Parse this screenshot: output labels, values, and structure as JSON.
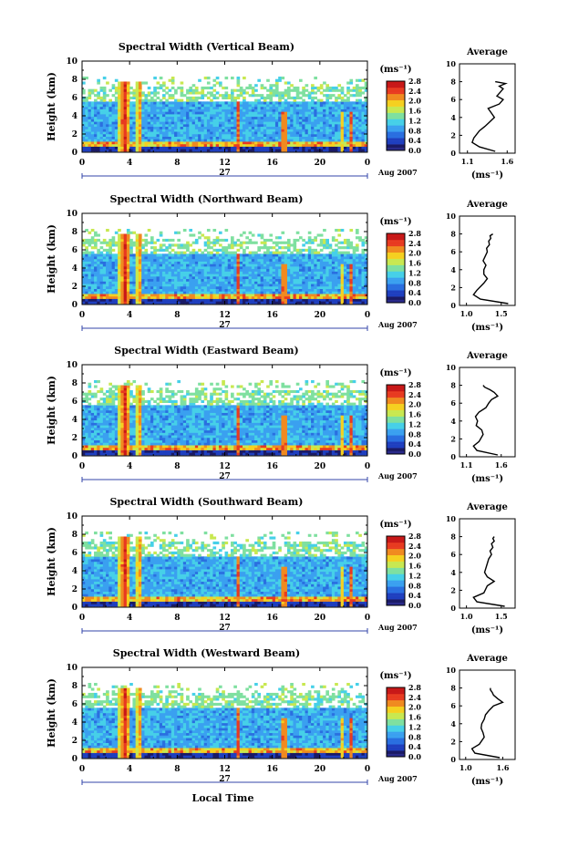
{
  "figure": {
    "xlabel": "Local Time",
    "date_label": "27",
    "month_label": "Aug 2007",
    "colorbar_unit": "(ms⁻¹)",
    "avg_title": "Average",
    "avg_xlabel": "(ms⁻¹)"
  },
  "colors": {
    "colormap": [
      "#1a1a66",
      "#1f3fbf",
      "#2a6fe0",
      "#3aa0f0",
      "#46d0e8",
      "#7fe0a0",
      "#c8e850",
      "#f5d020",
      "#f08a20",
      "#e83a20",
      "#c81818"
    ],
    "low_band": "#2a2a8a",
    "avg_line": "#000000"
  },
  "chart_data": [
    {
      "type": "heatmap",
      "title": "Spectral Width (Vertical Beam)",
      "ylabel": "Height (km)",
      "xticks": [
        "0",
        "4",
        "8",
        "12",
        "16",
        "20",
        "0"
      ],
      "yticks": [
        "0",
        "2",
        "4",
        "6",
        "8",
        "10"
      ],
      "xlim": [
        0,
        24
      ],
      "ylim": [
        0,
        10
      ],
      "colorbar": {
        "min": 0.0,
        "max": 2.8,
        "ticks": [
          "0.0",
          "0.4",
          "0.8",
          "1.2",
          "1.6",
          "2.0",
          "2.4",
          "2.8"
        ]
      },
      "spikes": [
        {
          "t": 3.6,
          "top": 7.8,
          "w": 1.0,
          "v": 2.7
        },
        {
          "t": 4.8,
          "top": 7.8,
          "w": 0.5,
          "v": 2.5
        },
        {
          "t": 13.1,
          "top": 5.5,
          "w": 0.4,
          "v": 2.6
        },
        {
          "t": 17.0,
          "top": 4.5,
          "w": 0.6,
          "v": 2.7
        },
        {
          "t": 21.8,
          "top": 4.5,
          "w": 0.3,
          "v": 2.5
        },
        {
          "t": 22.6,
          "top": 4.5,
          "w": 0.3,
          "v": 2.6
        }
      ],
      "average": {
        "xlim": [
          1.0,
          1.7
        ],
        "xticks": [
          "1.1",
          "1.6"
        ],
        "yticks": [
          "0",
          "2",
          "4",
          "6",
          "8",
          "10"
        ],
        "x": [
          1.45,
          1.25,
          1.16,
          1.18,
          1.25,
          1.32,
          1.38,
          1.44,
          1.4,
          1.36,
          1.5,
          1.55,
          1.47,
          1.51,
          1.55,
          1.5,
          1.58,
          1.45
        ],
        "y": [
          0.2,
          0.7,
          1.2,
          1.7,
          2.5,
          3.0,
          3.5,
          4.0,
          4.5,
          5.0,
          5.5,
          6.0,
          6.4,
          6.8,
          7.2,
          7.5,
          7.8,
          8.0
        ]
      }
    },
    {
      "type": "heatmap",
      "title": "Spectral Width (Northward Beam)",
      "ylabel": "Height (km)",
      "xticks": [
        "0",
        "4",
        "8",
        "12",
        "16",
        "20",
        "0"
      ],
      "yticks": [
        "0",
        "2",
        "4",
        "6",
        "8",
        "10"
      ],
      "xlim": [
        0,
        24
      ],
      "ylim": [
        0,
        10
      ],
      "colorbar": {
        "min": 0.0,
        "max": 2.8,
        "ticks": [
          "0.0",
          "0.4",
          "0.8",
          "1.2",
          "1.6",
          "2.0",
          "2.4",
          "2.8"
        ]
      },
      "spikes": [
        {
          "t": 3.6,
          "top": 7.8,
          "w": 1.0,
          "v": 2.7
        },
        {
          "t": 4.8,
          "top": 7.8,
          "w": 0.5,
          "v": 2.5
        },
        {
          "t": 13.1,
          "top": 5.5,
          "w": 0.4,
          "v": 2.6
        },
        {
          "t": 17.0,
          "top": 4.5,
          "w": 0.6,
          "v": 2.7
        },
        {
          "t": 21.8,
          "top": 4.5,
          "w": 0.3,
          "v": 2.5
        },
        {
          "t": 22.6,
          "top": 4.5,
          "w": 0.3,
          "v": 2.6
        }
      ],
      "average": {
        "xlim": [
          0.9,
          1.7
        ],
        "xticks": [
          "1.0",
          "1.5"
        ],
        "yticks": [
          "0",
          "2",
          "4",
          "6",
          "8",
          "10"
        ],
        "x": [
          1.6,
          1.2,
          1.1,
          1.15,
          1.25,
          1.3,
          1.25,
          1.25,
          1.28,
          1.24,
          1.27,
          1.3,
          1.29,
          1.33,
          1.32,
          1.35,
          1.34,
          1.38
        ],
        "y": [
          0.2,
          0.7,
          1.2,
          1.7,
          2.5,
          3.0,
          3.5,
          4.0,
          4.5,
          5.0,
          5.5,
          6.0,
          6.4,
          6.8,
          7.2,
          7.5,
          7.8,
          8.0
        ]
      }
    },
    {
      "type": "heatmap",
      "title": "Spectral Width (Eastward Beam)",
      "ylabel": "Height (km)",
      "xticks": [
        "0",
        "4",
        "8",
        "12",
        "16",
        "20",
        "0"
      ],
      "yticks": [
        "0",
        "2",
        "4",
        "6",
        "8",
        "10"
      ],
      "xlim": [
        0,
        24
      ],
      "ylim": [
        0,
        10
      ],
      "colorbar": {
        "min": 0.0,
        "max": 2.8,
        "ticks": [
          "0.0",
          "0.4",
          "0.8",
          "1.2",
          "1.6",
          "2.0",
          "2.4",
          "2.8"
        ]
      },
      "spikes": [
        {
          "t": 3.6,
          "top": 7.8,
          "w": 1.0,
          "v": 2.7
        },
        {
          "t": 4.8,
          "top": 7.8,
          "w": 0.5,
          "v": 2.5
        },
        {
          "t": 13.1,
          "top": 5.5,
          "w": 0.4,
          "v": 2.6
        },
        {
          "t": 17.0,
          "top": 4.5,
          "w": 0.6,
          "v": 2.7
        },
        {
          "t": 21.8,
          "top": 4.5,
          "w": 0.3,
          "v": 2.5
        },
        {
          "t": 22.6,
          "top": 4.5,
          "w": 0.3,
          "v": 2.6
        }
      ],
      "average": {
        "xlim": [
          1.0,
          1.8
        ],
        "xticks": [
          "1.1",
          "1.6"
        ],
        "yticks": [
          "0",
          "2",
          "4",
          "6",
          "8",
          "10"
        ],
        "x": [
          1.55,
          1.25,
          1.2,
          1.28,
          1.34,
          1.32,
          1.24,
          1.26,
          1.23,
          1.28,
          1.38,
          1.42,
          1.46,
          1.55,
          1.5,
          1.44,
          1.36,
          1.34
        ],
        "y": [
          0.2,
          0.7,
          1.2,
          1.7,
          2.5,
          3.0,
          3.5,
          4.0,
          4.5,
          5.0,
          5.5,
          6.0,
          6.4,
          6.8,
          7.2,
          7.5,
          7.8,
          8.0
        ]
      }
    },
    {
      "type": "heatmap",
      "title": "Spectral Width (Southward Beam)",
      "ylabel": "Height (km)",
      "xticks": [
        "0",
        "4",
        "8",
        "12",
        "16",
        "20",
        "0"
      ],
      "yticks": [
        "0",
        "2",
        "4",
        "6",
        "8",
        "10"
      ],
      "xlim": [
        0,
        24
      ],
      "ylim": [
        0,
        10
      ],
      "colorbar": {
        "min": 0.0,
        "max": 2.8,
        "ticks": [
          "0.0",
          "0.4",
          "0.8",
          "1.2",
          "1.6",
          "2.0",
          "2.4",
          "2.8"
        ]
      },
      "spikes": [
        {
          "t": 3.6,
          "top": 7.8,
          "w": 1.0,
          "v": 2.7
        },
        {
          "t": 4.8,
          "top": 7.8,
          "w": 0.5,
          "v": 2.5
        },
        {
          "t": 13.1,
          "top": 5.5,
          "w": 0.4,
          "v": 2.6
        },
        {
          "t": 17.0,
          "top": 4.5,
          "w": 0.6,
          "v": 2.7
        },
        {
          "t": 21.8,
          "top": 4.5,
          "w": 0.3,
          "v": 2.5
        },
        {
          "t": 22.6,
          "top": 4.5,
          "w": 0.3,
          "v": 2.6
        }
      ],
      "average": {
        "xlim": [
          0.9,
          1.7
        ],
        "xticks": [
          "1.0",
          "1.5"
        ],
        "yticks": [
          "0",
          "2",
          "4",
          "6",
          "8",
          "10"
        ],
        "x": [
          1.55,
          1.15,
          1.1,
          1.25,
          1.3,
          1.4,
          1.3,
          1.26,
          1.28,
          1.3,
          1.32,
          1.36,
          1.34,
          1.38,
          1.36,
          1.4,
          1.38,
          1.4
        ],
        "y": [
          0.2,
          0.7,
          1.2,
          1.7,
          2.5,
          3.0,
          3.5,
          4.0,
          4.5,
          5.0,
          5.5,
          6.0,
          6.4,
          6.8,
          7.2,
          7.5,
          7.8,
          8.0
        ]
      }
    },
    {
      "type": "heatmap",
      "title": "Spectral Width (Westward Beam)",
      "ylabel": "Height (km)",
      "xticks": [
        "0",
        "4",
        "8",
        "12",
        "16",
        "20",
        "0"
      ],
      "yticks": [
        "0",
        "2",
        "4",
        "6",
        "8",
        "10"
      ],
      "xlim": [
        0,
        24
      ],
      "ylim": [
        0,
        10
      ],
      "colorbar": {
        "min": 0.0,
        "max": 2.8,
        "ticks": [
          "0.0",
          "0.4",
          "0.8",
          "1.2",
          "1.6",
          "2.0",
          "2.4",
          "2.8"
        ]
      },
      "spikes": [
        {
          "t": 3.6,
          "top": 7.8,
          "w": 1.0,
          "v": 2.7
        },
        {
          "t": 4.8,
          "top": 7.8,
          "w": 0.5,
          "v": 2.5
        },
        {
          "t": 13.1,
          "top": 5.5,
          "w": 0.4,
          "v": 2.6
        },
        {
          "t": 17.0,
          "top": 4.5,
          "w": 0.6,
          "v": 2.7
        },
        {
          "t": 21.8,
          "top": 4.5,
          "w": 0.3,
          "v": 2.5
        },
        {
          "t": 22.6,
          "top": 4.5,
          "w": 0.3,
          "v": 2.6
        }
      ],
      "average": {
        "xlim": [
          0.9,
          1.8
        ],
        "xticks": [
          "1.0",
          "1.6"
        ],
        "yticks": [
          "0",
          "2",
          "4",
          "6",
          "8",
          "10"
        ],
        "x": [
          1.55,
          1.15,
          1.1,
          1.22,
          1.3,
          1.28,
          1.25,
          1.26,
          1.3,
          1.32,
          1.38,
          1.45,
          1.6,
          1.52,
          1.45,
          1.43,
          1.4,
          1.4
        ],
        "y": [
          0.2,
          0.7,
          1.2,
          1.7,
          2.5,
          3.0,
          3.5,
          4.0,
          4.5,
          5.0,
          5.5,
          6.0,
          6.4,
          6.8,
          7.2,
          7.5,
          7.8,
          8.0
        ]
      }
    }
  ]
}
